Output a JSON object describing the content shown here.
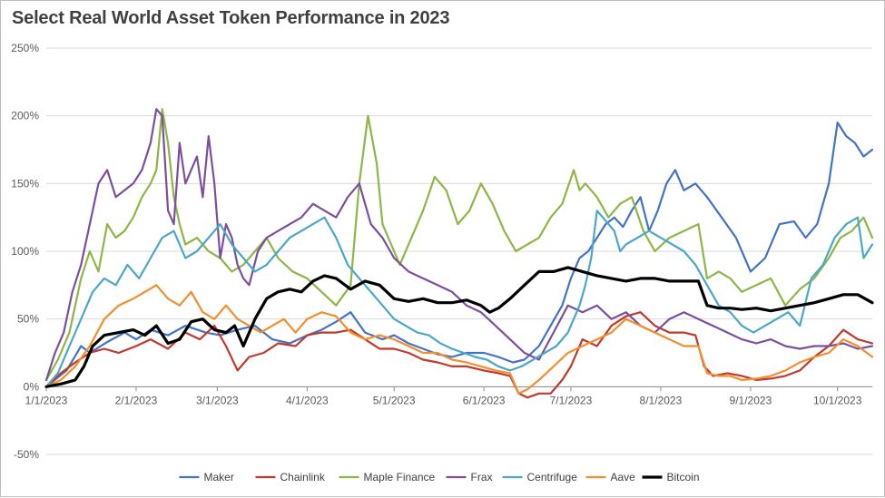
{
  "chart_data": {
    "type": "line",
    "title": "Select Real World Asset Token Performance in 2023",
    "xlabel": "",
    "ylabel": "",
    "ylim": [
      -50,
      250
    ],
    "y_ticks": [
      "250%",
      "200%",
      "150%",
      "100%",
      "50%",
      "0%",
      "-50%"
    ],
    "y_tick_values": [
      250,
      200,
      150,
      100,
      50,
      0,
      -50
    ],
    "x_ticks": [
      "1/1/2023",
      "2/1/2023",
      "3/1/2023",
      "4/1/2023",
      "5/1/2023",
      "6/1/2023",
      "7/1/2023",
      "8/1/2023",
      "9/1/2023",
      "10/1/2023"
    ],
    "x_tick_days": [
      0,
      31,
      59,
      90,
      120,
      151,
      181,
      212,
      243,
      273
    ],
    "x_domain_days": [
      0,
      285
    ],
    "x_unit": "days since 1/1/2023",
    "gridlines": "horizontal",
    "legend_position": "bottom",
    "series": [
      {
        "name": "Maker",
        "color": "#4472C4",
        "width": 2.2,
        "x": [
          0,
          7,
          12,
          15,
          21,
          27,
          31,
          36,
          42,
          48,
          55,
          60,
          66,
          72,
          78,
          84,
          90,
          95,
          100,
          105,
          110,
          116,
          120,
          125,
          130,
          135,
          140,
          145,
          151,
          156,
          161,
          165,
          170,
          174,
          178,
          181,
          184,
          187,
          190,
          193,
          196,
          199,
          202,
          205,
          208,
          211,
          214,
          217,
          220,
          224,
          228,
          233,
          238,
          243,
          248,
          253,
          258,
          262,
          266,
          270,
          273,
          276,
          279,
          282,
          285
        ],
        "y": [
          0,
          12,
          30,
          25,
          33,
          40,
          35,
          42,
          38,
          45,
          40,
          38,
          42,
          45,
          35,
          32,
          38,
          42,
          48,
          55,
          40,
          35,
          38,
          32,
          28,
          24,
          22,
          25,
          25,
          22,
          18,
          20,
          30,
          45,
          60,
          80,
          95,
          100,
          110,
          120,
          125,
          118,
          130,
          140,
          115,
          130,
          150,
          160,
          145,
          150,
          140,
          125,
          110,
          85,
          95,
          120,
          122,
          110,
          120,
          150,
          195,
          185,
          180,
          170,
          175
        ]
      },
      {
        "name": "Chainlink",
        "color": "#C0392B",
        "width": 2.2,
        "x": [
          0,
          5,
          10,
          15,
          20,
          25,
          31,
          36,
          42,
          48,
          53,
          58,
          62,
          66,
          70,
          75,
          80,
          86,
          90,
          95,
          100,
          105,
          110,
          115,
          120,
          125,
          130,
          135,
          140,
          145,
          151,
          156,
          160,
          163,
          166,
          170,
          174,
          178,
          181,
          185,
          190,
          195,
          200,
          205,
          210,
          215,
          220,
          224,
          227,
          230,
          235,
          240,
          245,
          250,
          255,
          260,
          265,
          270,
          275,
          280,
          285
        ],
        "y": [
          0,
          10,
          18,
          25,
          28,
          25,
          30,
          35,
          28,
          40,
          35,
          45,
          30,
          12,
          22,
          25,
          32,
          30,
          38,
          40,
          40,
          42,
          35,
          28,
          28,
          25,
          20,
          18,
          15,
          15,
          12,
          10,
          8,
          -5,
          -8,
          -5,
          -5,
          5,
          15,
          35,
          30,
          45,
          52,
          55,
          45,
          40,
          40,
          38,
          15,
          8,
          10,
          8,
          5,
          6,
          8,
          12,
          22,
          30,
          42,
          35,
          32
        ]
      },
      {
        "name": "Maple Finance",
        "color": "#8DB646",
        "width": 2.2,
        "x": [
          0,
          4,
          8,
          12,
          15,
          18,
          21,
          24,
          27,
          30,
          33,
          36,
          38,
          40,
          42,
          44,
          46,
          48,
          52,
          56,
          60,
          64,
          68,
          72,
          76,
          80,
          85,
          90,
          95,
          100,
          105,
          108,
          111,
          114,
          116,
          119,
          122,
          126,
          130,
          134,
          138,
          142,
          146,
          150,
          154,
          158,
          162,
          166,
          170,
          174,
          178,
          182,
          184,
          186,
          190,
          194,
          198,
          202,
          206,
          210,
          215,
          220,
          225,
          228,
          232,
          236,
          240,
          245,
          250,
          255,
          260,
          265,
          270,
          274,
          278,
          282,
          285
        ],
        "y": [
          5,
          20,
          40,
          80,
          100,
          85,
          120,
          110,
          115,
          125,
          140,
          150,
          160,
          205,
          180,
          140,
          120,
          105,
          110,
          100,
          95,
          85,
          90,
          100,
          110,
          95,
          85,
          80,
          70,
          60,
          75,
          150,
          200,
          165,
          120,
          105,
          90,
          110,
          130,
          155,
          145,
          120,
          130,
          150,
          135,
          115,
          100,
          105,
          110,
          125,
          135,
          160,
          145,
          150,
          140,
          125,
          135,
          140,
          115,
          100,
          110,
          115,
          120,
          80,
          85,
          80,
          70,
          75,
          80,
          60,
          72,
          80,
          95,
          110,
          115,
          125,
          110
        ]
      },
      {
        "name": "Frax",
        "color": "#7B4F9E",
        "width": 2.2,
        "x": [
          0,
          3,
          6,
          9,
          12,
          15,
          18,
          21,
          24,
          27,
          30,
          33,
          36,
          38,
          40,
          42,
          44,
          46,
          48,
          50,
          52,
          54,
          56,
          58,
          60,
          62,
          64,
          66,
          68,
          70,
          73,
          76,
          80,
          84,
          88,
          92,
          96,
          100,
          104,
          108,
          112,
          116,
          120,
          125,
          130,
          135,
          140,
          145,
          150,
          155,
          160,
          165,
          170,
          175,
          180,
          185,
          190,
          195,
          200,
          205,
          210,
          215,
          220,
          225,
          230,
          235,
          240,
          245,
          250,
          255,
          260,
          265,
          270,
          275,
          280,
          285
        ],
        "y": [
          5,
          25,
          40,
          70,
          90,
          120,
          150,
          160,
          140,
          145,
          150,
          160,
          180,
          205,
          200,
          130,
          120,
          180,
          150,
          160,
          170,
          140,
          185,
          150,
          95,
          120,
          110,
          90,
          80,
          75,
          100,
          110,
          115,
          120,
          125,
          135,
          130,
          125,
          140,
          150,
          120,
          110,
          95,
          85,
          80,
          75,
          70,
          60,
          55,
          45,
          35,
          25,
          20,
          40,
          60,
          55,
          60,
          50,
          55,
          45,
          40,
          50,
          55,
          50,
          45,
          40,
          35,
          32,
          35,
          30,
          28,
          30,
          30,
          32,
          28,
          30
        ]
      },
      {
        "name": "Centrifuge",
        "color": "#4BA7C6",
        "width": 2.2,
        "x": [
          0,
          4,
          8,
          12,
          16,
          20,
          24,
          28,
          32,
          36,
          40,
          44,
          48,
          52,
          56,
          60,
          64,
          68,
          72,
          76,
          80,
          84,
          88,
          92,
          96,
          100,
          104,
          108,
          112,
          116,
          120,
          124,
          128,
          132,
          136,
          140,
          144,
          148,
          152,
          156,
          160,
          164,
          168,
          172,
          176,
          180,
          184,
          186,
          188,
          190,
          192,
          194,
          196,
          198,
          200,
          204,
          208,
          212,
          216,
          220,
          224,
          228,
          232,
          236,
          240,
          244,
          248,
          252,
          256,
          260,
          264,
          268,
          272,
          276,
          280,
          282,
          285
        ],
        "y": [
          0,
          10,
          30,
          50,
          70,
          80,
          75,
          90,
          80,
          95,
          110,
          115,
          95,
          100,
          110,
          120,
          105,
          95,
          85,
          90,
          100,
          110,
          115,
          120,
          125,
          110,
          90,
          80,
          70,
          60,
          50,
          45,
          40,
          38,
          32,
          28,
          25,
          22,
          20,
          15,
          12,
          15,
          20,
          25,
          30,
          40,
          60,
          75,
          95,
          130,
          125,
          120,
          115,
          100,
          105,
          110,
          115,
          110,
          105,
          100,
          90,
          75,
          60,
          55,
          45,
          40,
          45,
          50,
          55,
          45,
          80,
          90,
          110,
          120,
          125,
          95,
          105
        ]
      },
      {
        "name": "Aave",
        "color": "#F28E2B",
        "width": 2.2,
        "x": [
          0,
          5,
          10,
          15,
          20,
          25,
          30,
          34,
          38,
          42,
          46,
          50,
          54,
          58,
          62,
          66,
          70,
          74,
          78,
          82,
          86,
          90,
          95,
          100,
          105,
          110,
          115,
          120,
          125,
          130,
          135,
          140,
          145,
          150,
          155,
          160,
          163,
          166,
          170,
          175,
          180,
          185,
          190,
          195,
          200,
          205,
          210,
          215,
          220,
          225,
          228,
          232,
          236,
          240,
          245,
          250,
          255,
          260,
          265,
          270,
          275,
          280,
          285
        ],
        "y": [
          0,
          5,
          15,
          30,
          50,
          60,
          65,
          70,
          75,
          65,
          60,
          70,
          55,
          50,
          60,
          50,
          45,
          40,
          45,
          50,
          40,
          50,
          55,
          52,
          40,
          35,
          38,
          35,
          30,
          25,
          25,
          20,
          18,
          15,
          12,
          10,
          -5,
          -2,
          5,
          15,
          25,
          30,
          35,
          40,
          50,
          45,
          40,
          35,
          30,
          30,
          10,
          8,
          8,
          5,
          6,
          8,
          12,
          18,
          22,
          25,
          35,
          30,
          22
        ]
      },
      {
        "name": "Bitcoin",
        "color": "#000000",
        "width": 3.2,
        "x": [
          0,
          5,
          10,
          13,
          16,
          20,
          25,
          30,
          34,
          38,
          42,
          46,
          50,
          54,
          58,
          62,
          65,
          68,
          72,
          76,
          80,
          84,
          88,
          92,
          96,
          100,
          105,
          110,
          115,
          120,
          125,
          130,
          135,
          140,
          145,
          150,
          153,
          156,
          160,
          165,
          170,
          175,
          180,
          185,
          190,
          195,
          200,
          205,
          210,
          215,
          220,
          225,
          228,
          232,
          236,
          240,
          245,
          250,
          255,
          260,
          265,
          270,
          275,
          280,
          285
        ],
        "y": [
          0,
          2,
          5,
          15,
          30,
          38,
          40,
          42,
          38,
          45,
          32,
          35,
          48,
          50,
          42,
          40,
          45,
          30,
          50,
          65,
          70,
          72,
          70,
          78,
          82,
          80,
          72,
          78,
          75,
          65,
          63,
          65,
          62,
          62,
          64,
          60,
          55,
          58,
          65,
          75,
          85,
          85,
          88,
          85,
          82,
          80,
          78,
          80,
          80,
          78,
          78,
          78,
          60,
          58,
          58,
          57,
          58,
          56,
          58,
          60,
          62,
          65,
          68,
          68,
          62
        ]
      }
    ]
  }
}
